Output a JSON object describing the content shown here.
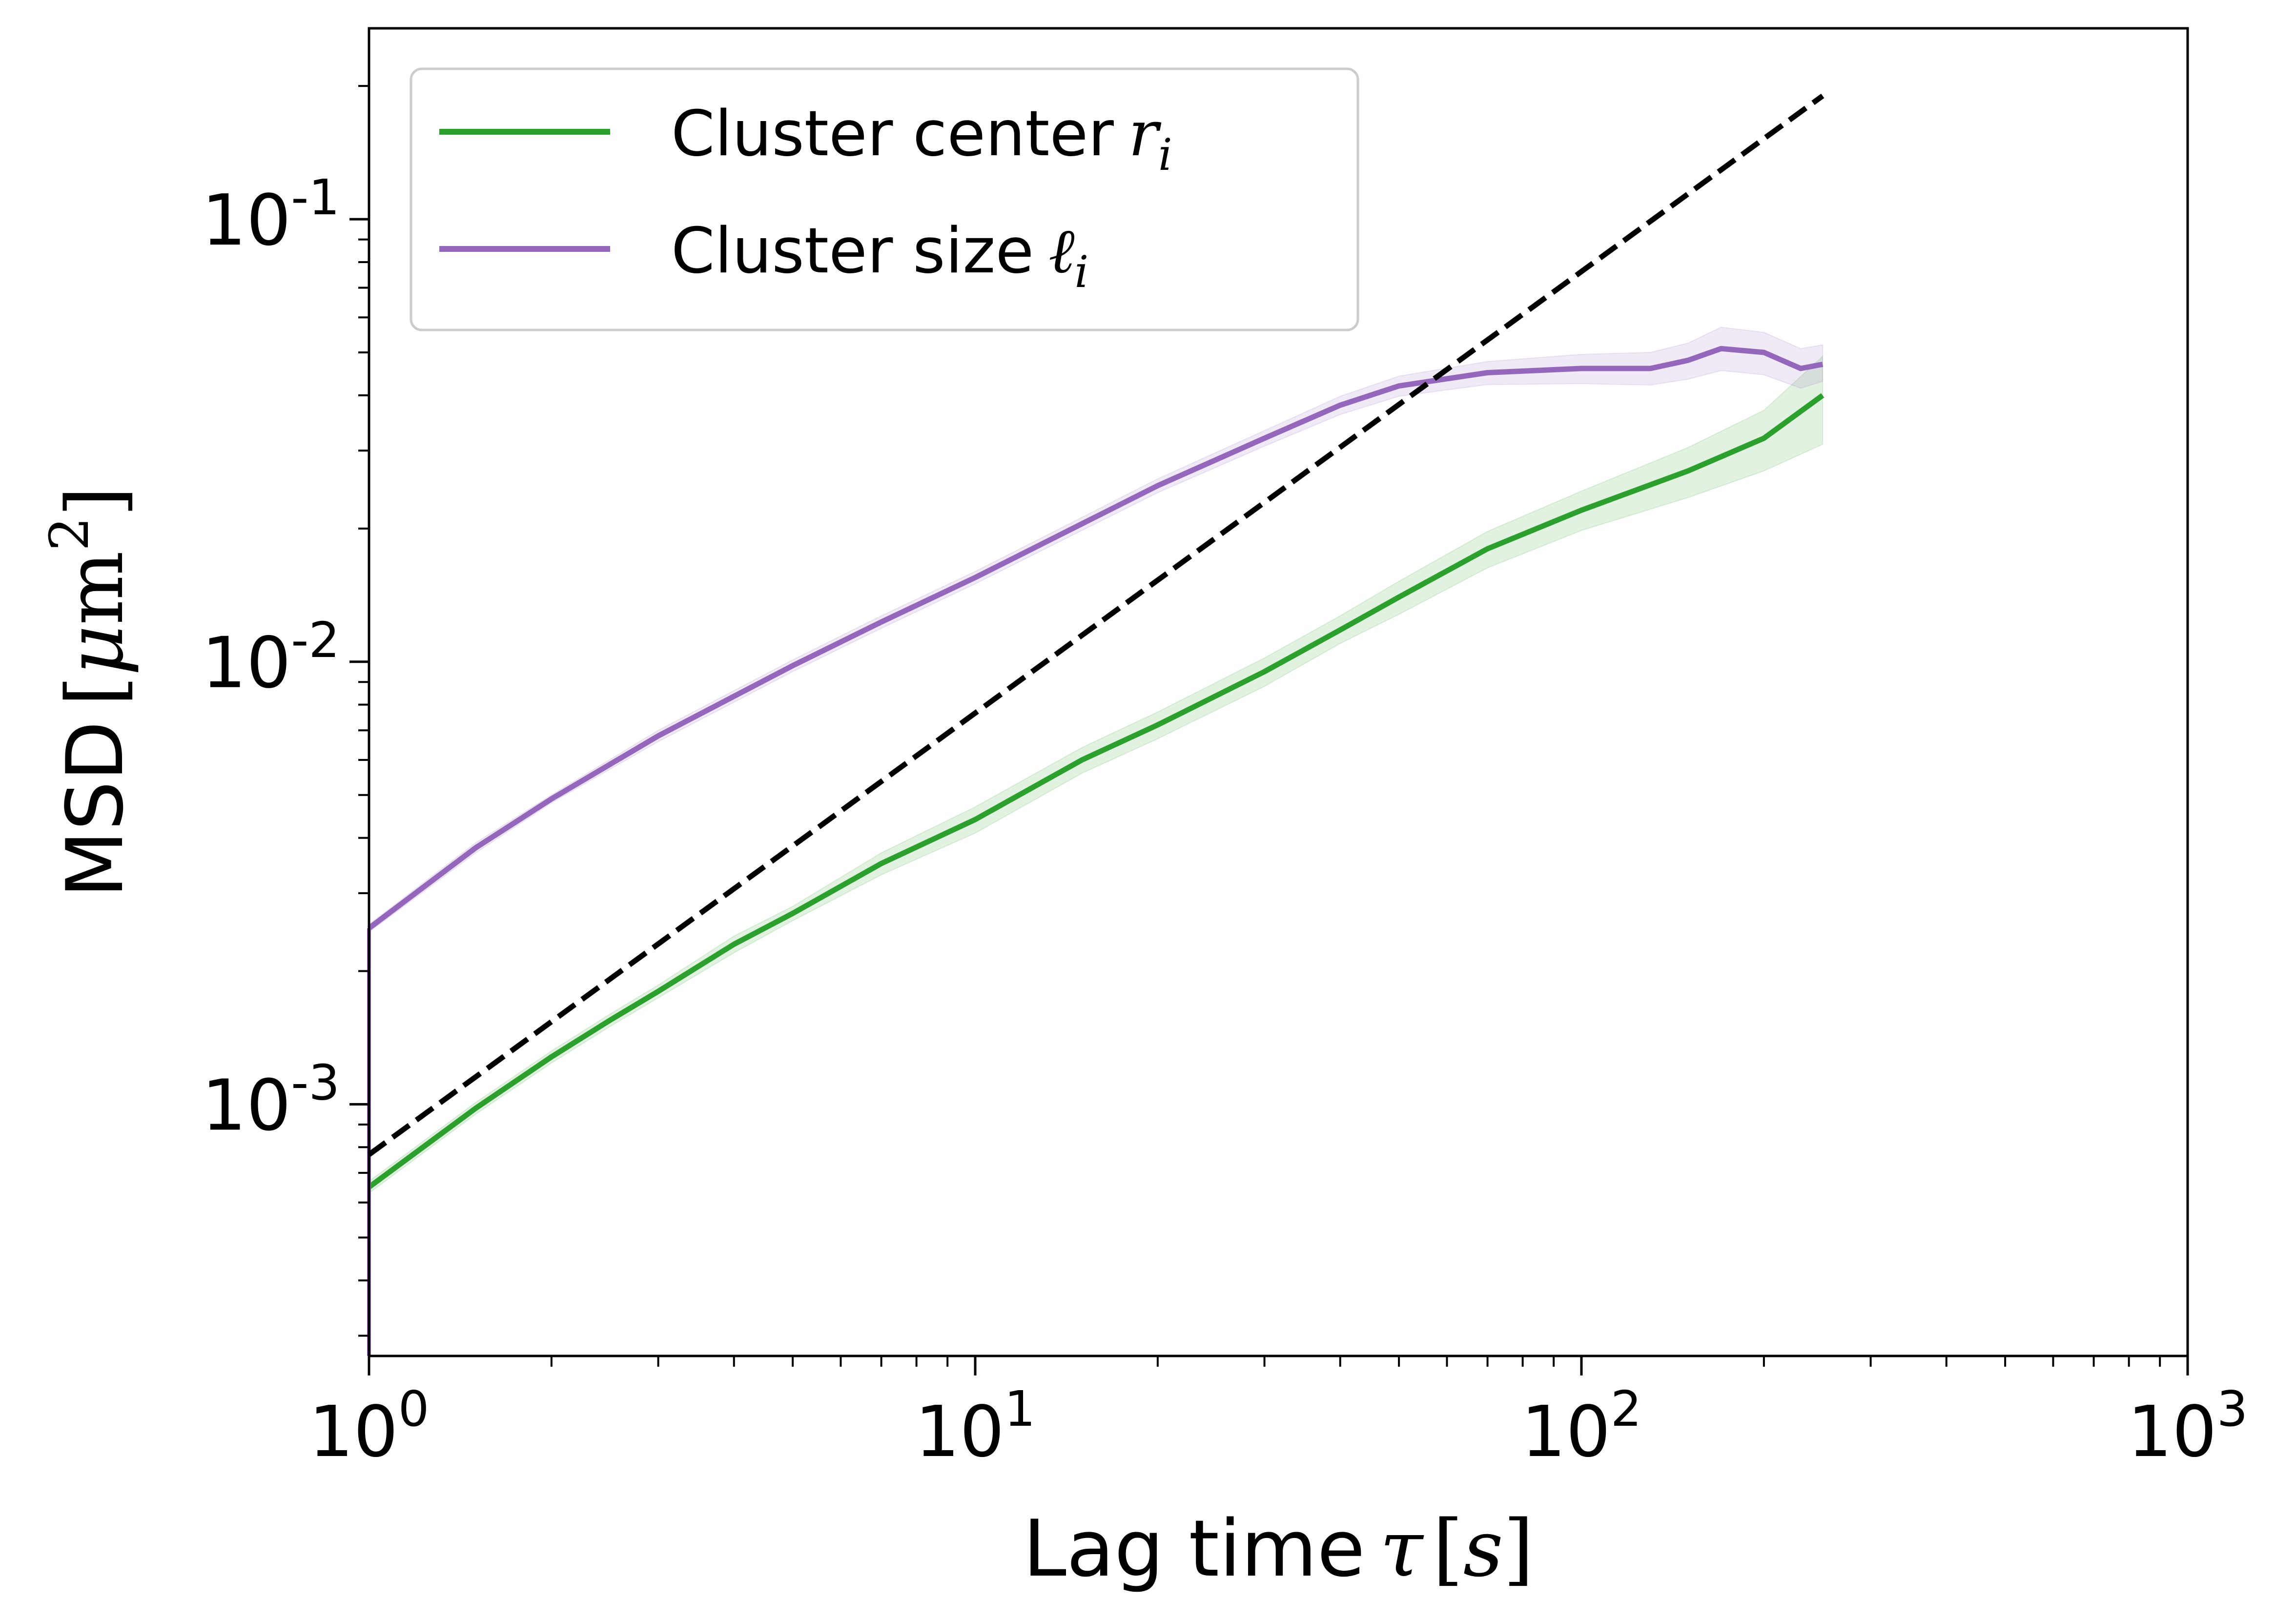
{
  "chart_data": {
    "type": "line",
    "xlabel": "Lag time",
    "xlabel_math": "τ",
    "xlabel_unit": "s",
    "ylabel": "MSD",
    "ylabel_unit_math": "μ",
    "ylabel_unit_rm": "m",
    "ylabel_unit_sup": "2",
    "xscale": "log",
    "yscale": "log",
    "xlim": [
      1,
      1000
    ],
    "ylim": [
      0.00027,
      0.27
    ],
    "grid": false,
    "legend_position": "upper-left",
    "x_ticks": [
      {
        "base": "10",
        "exp": "0",
        "value": 1
      },
      {
        "base": "10",
        "exp": "1",
        "value": 10
      },
      {
        "base": "10",
        "exp": "2",
        "value": 100
      },
      {
        "base": "10",
        "exp": "3",
        "value": 1000
      }
    ],
    "y_ticks": [
      {
        "base": "10",
        "exp": "-3",
        "value": 0.001
      },
      {
        "base": "10",
        "exp": "-2",
        "value": 0.01
      },
      {
        "base": "10",
        "exp": "-1",
        "value": 0.1
      }
    ],
    "series": [
      {
        "name": "Cluster center",
        "name_math": "r",
        "name_sub": "i",
        "color": "#2ca02c",
        "x": [
          1,
          1.5,
          2,
          2.5,
          3,
          4,
          5,
          7,
          10,
          15,
          20,
          30,
          40,
          50,
          70,
          100,
          150,
          200,
          250
        ],
        "y": [
          0.00065,
          0.00098,
          0.00128,
          0.00155,
          0.0018,
          0.0023,
          0.0027,
          0.0035,
          0.0044,
          0.006,
          0.0072,
          0.0095,
          0.0118,
          0.014,
          0.018,
          0.022,
          0.027,
          0.032,
          0.04
        ],
        "band_lower": [
          0.00063,
          0.00095,
          0.00124,
          0.0015,
          0.00174,
          0.0022,
          0.0026,
          0.0033,
          0.0041,
          0.0056,
          0.0067,
          0.0088,
          0.011,
          0.0128,
          0.0163,
          0.0198,
          0.0235,
          0.027,
          0.031
        ],
        "band_upper": [
          0.00067,
          0.00101,
          0.00132,
          0.0016,
          0.00186,
          0.0024,
          0.0028,
          0.0037,
          0.0047,
          0.0064,
          0.0077,
          0.0102,
          0.0127,
          0.0152,
          0.0197,
          0.0243,
          0.0305,
          0.037,
          0.049
        ]
      },
      {
        "name": "Cluster size",
        "name_math": "ℓ",
        "name_sub": "i",
        "color": "#9467bd",
        "x": [
          1,
          1.5,
          2,
          3,
          5,
          7,
          10,
          15,
          20,
          30,
          40,
          50,
          70,
          100,
          130,
          150,
          170,
          200,
          230,
          250
        ],
        "y": [
          0.0025,
          0.0038,
          0.0049,
          0.0068,
          0.0098,
          0.0123,
          0.0155,
          0.0205,
          0.025,
          0.032,
          0.038,
          0.042,
          0.045,
          0.046,
          0.046,
          0.048,
          0.051,
          0.05,
          0.046,
          0.047
        ],
        "band_lower": [
          0.00245,
          0.0037,
          0.0048,
          0.0066,
          0.0095,
          0.0119,
          0.015,
          0.0198,
          0.0241,
          0.0307,
          0.0362,
          0.0398,
          0.0423,
          0.0425,
          0.0422,
          0.0435,
          0.0455,
          0.0445,
          0.0415,
          0.043
        ],
        "band_upper": [
          0.00255,
          0.0039,
          0.005,
          0.007,
          0.0101,
          0.0127,
          0.016,
          0.0212,
          0.0259,
          0.0333,
          0.0398,
          0.0442,
          0.0477,
          0.0495,
          0.05,
          0.0525,
          0.057,
          0.0555,
          0.051,
          0.052
        ]
      },
      {
        "name": "",
        "color": "#000000",
        "style": "dashed",
        "x": [
          1,
          250
        ],
        "y": [
          0.00077,
          0.19
        ]
      }
    ]
  }
}
